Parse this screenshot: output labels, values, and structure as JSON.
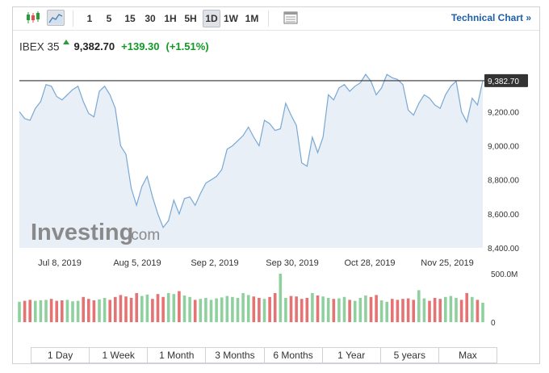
{
  "toolbar": {
    "intervals": [
      "1",
      "5",
      "15",
      "30",
      "1H",
      "5H",
      "1D",
      "1W",
      "1M"
    ],
    "active_interval": "1D",
    "technical_chart_label": "Technical Chart »"
  },
  "quote": {
    "name": "IBEX 35",
    "price": "9,382.70",
    "change": "+139.30",
    "change_pct": "(+1.51%)",
    "direction_icon": "up-arrow-icon",
    "positive_color": "#119a26"
  },
  "watermark": {
    "brand": "Investing",
    "suffix": ".com"
  },
  "chart_data": {
    "type": "area",
    "series": [
      {
        "values": [
          9200,
          9160,
          9150,
          9220,
          9260,
          9360,
          9350,
          9290,
          9270,
          9300,
          9330,
          9350,
          9260,
          9190,
          9170,
          9320,
          9350,
          9300,
          9220,
          9000,
          8950,
          8750,
          8650,
          8760,
          8820,
          8700,
          8600,
          8520,
          8560,
          8680,
          8600,
          8690,
          8700,
          8650,
          8720,
          8780,
          8800,
          8820,
          8860,
          8980,
          9000,
          9030,
          9060,
          9110,
          9050,
          9000,
          9150,
          9130,
          9090,
          9100,
          9250,
          9180,
          9120,
          8900,
          8880,
          9050,
          8960,
          9050,
          9300,
          9270,
          9340,
          9360,
          9320,
          9350,
          9370,
          9420,
          9380,
          9300,
          9340,
          9420,
          9400,
          9390,
          9360,
          9210,
          9180,
          9250,
          9300,
          9280,
          9240,
          9220,
          9300,
          9350,
          9380,
          9200,
          9140,
          9280,
          9240,
          9382.7
        ]
      },
      {
        "name": "Volume",
        "values": [
          210,
          220,
          230,
          220,
          225,
          230,
          240,
          220,
          225,
          230,
          215,
          220,
          260,
          240,
          225,
          235,
          250,
          230,
          260,
          280,
          265,
          250,
          300,
          270,
          285,
          240,
          290,
          260,
          300,
          290,
          320,
          275,
          260,
          230,
          240,
          250,
          230,
          245,
          255,
          270,
          260,
          250,
          300,
          280,
          265,
          250,
          240,
          260,
          300,
          500,
          250,
          270,
          265,
          240,
          250,
          300,
          275,
          265,
          250,
          240,
          245,
          260,
          230,
          220,
          250,
          275,
          260,
          280,
          225,
          210,
          240,
          230,
          240,
          245,
          230,
          330,
          245,
          220,
          250,
          240,
          260,
          270,
          250,
          230,
          300,
          260,
          230,
          200
        ]
      }
    ],
    "x_tick_labels": [
      "Jul 8, 2019",
      "Aug 5, 2019",
      "Sep 2, 2019",
      "Sep 30, 2019",
      "Oct 28, 2019",
      "Nov 25, 2019"
    ],
    "y_tick_labels": [
      "9,200.00",
      "9,000.00",
      "8,800.00",
      "8,600.00",
      "8,400.00"
    ],
    "ylim": [
      8400,
      9520
    ],
    "last_value_label": "9,382.70",
    "volume_axis_labels": [
      "500.0M",
      "0"
    ],
    "volume_max": 500,
    "line_color": "#7aa8d4",
    "area_fill": "#e8eff7",
    "vol_up_color": "#8fd19e",
    "vol_down_color": "#e57373"
  },
  "range_buttons": [
    "1 Day",
    "1 Week",
    "1 Month",
    "3 Months",
    "6 Months",
    "1 Year",
    "5 years",
    "Max"
  ]
}
